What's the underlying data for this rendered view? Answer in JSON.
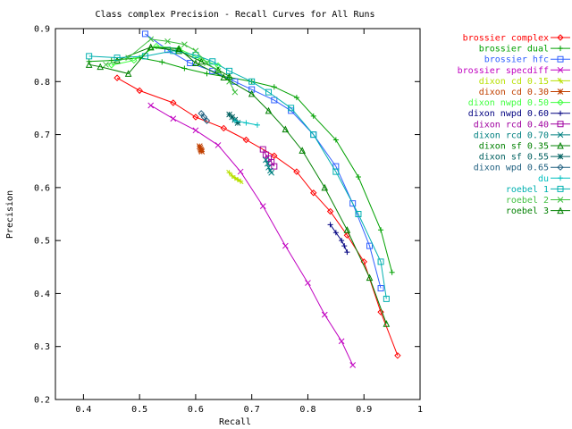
{
  "chart_data": {
    "type": "line",
    "title": "Class complex Precision - Recall Curves for All Runs",
    "xlabel": "Recall",
    "ylabel": "Precision",
    "xlim": [
      0.35,
      1.0
    ],
    "ylim": [
      0.2,
      0.9
    ],
    "xticks": [
      "0.4",
      "0.5",
      "0.6",
      "0.7",
      "0.8",
      "0.9",
      "1"
    ],
    "yticks": [
      "0.2",
      "0.3",
      "0.4",
      "0.5",
      "0.6",
      "0.7",
      "0.8",
      "0.9"
    ],
    "grid": false,
    "legend_position": "right",
    "series": [
      {
        "name": "brossier complex",
        "color": "#ff0000",
        "marker": "diamond",
        "x": [
          0.46,
          0.5,
          0.56,
          0.6,
          0.65,
          0.69,
          0.74,
          0.78,
          0.81,
          0.84,
          0.87,
          0.9,
          0.93,
          0.96
        ],
        "y": [
          0.807,
          0.783,
          0.76,
          0.733,
          0.712,
          0.69,
          0.66,
          0.63,
          0.59,
          0.555,
          0.51,
          0.46,
          0.365,
          0.283
        ]
      },
      {
        "name": "brossier dual",
        "color": "#00a000",
        "marker": "plus",
        "x": [
          0.41,
          0.45,
          0.5,
          0.54,
          0.58,
          0.62,
          0.66,
          0.7,
          0.74,
          0.78,
          0.81,
          0.85,
          0.89,
          0.93,
          0.95
        ],
        "y": [
          0.838,
          0.84,
          0.845,
          0.837,
          0.825,
          0.815,
          0.808,
          0.8,
          0.79,
          0.77,
          0.735,
          0.69,
          0.62,
          0.52,
          0.44
        ]
      },
      {
        "name": "brossier hfc",
        "color": "#3060ff",
        "marker": "square",
        "x": [
          0.51,
          0.55,
          0.59,
          0.63,
          0.67,
          0.7,
          0.74,
          0.77,
          0.81,
          0.85,
          0.88,
          0.91,
          0.93
        ],
        "y": [
          0.89,
          0.86,
          0.835,
          0.82,
          0.8,
          0.785,
          0.765,
          0.745,
          0.7,
          0.64,
          0.57,
          0.49,
          0.41
        ]
      },
      {
        "name": "brossier specdiff",
        "color": "#c000c0",
        "marker": "cross",
        "x": [
          0.52,
          0.56,
          0.6,
          0.64,
          0.68,
          0.72,
          0.76,
          0.8,
          0.83,
          0.86,
          0.88
        ],
        "y": [
          0.755,
          0.73,
          0.708,
          0.68,
          0.63,
          0.565,
          0.49,
          0.42,
          0.36,
          0.31,
          0.265
        ]
      },
      {
        "name": "dixon cd 0.15",
        "color": "#b8e000",
        "marker": "star",
        "x": [
          0.66,
          0.665,
          0.67,
          0.675,
          0.68
        ],
        "y": [
          0.628,
          0.622,
          0.618,
          0.615,
          0.612
        ]
      },
      {
        "name": "dixon cd 0.30",
        "color": "#c04000",
        "marker": "asterisk",
        "x": [
          0.607,
          0.608,
          0.609,
          0.61,
          0.611
        ],
        "y": [
          0.678,
          0.675,
          0.672,
          0.67,
          0.668
        ]
      },
      {
        "name": "dixon nwpd 0.50",
        "color": "#40ff40",
        "marker": "diamond",
        "x": [
          0.45,
          0.49,
          0.53,
          0.57,
          0.61,
          0.64
        ],
        "y": [
          0.831,
          0.84,
          0.867,
          0.862,
          0.842,
          0.83
        ]
      },
      {
        "name": "dixon nwpd 0.60",
        "color": "#000080",
        "marker": "plus",
        "x": [
          0.84,
          0.85,
          0.86,
          0.865,
          0.87
        ],
        "y": [
          0.53,
          0.515,
          0.5,
          0.49,
          0.478
        ]
      },
      {
        "name": "dixon rcd 0.40",
        "color": "#a000a0",
        "marker": "square",
        "x": [
          0.72,
          0.725,
          0.73,
          0.735,
          0.74
        ],
        "y": [
          0.672,
          0.662,
          0.655,
          0.648,
          0.64
        ]
      },
      {
        "name": "dixon rcd 0.70",
        "color": "#008080",
        "marker": "cross",
        "x": [
          0.725,
          0.728,
          0.73,
          0.733,
          0.735
        ],
        "y": [
          0.652,
          0.645,
          0.638,
          0.632,
          0.628
        ]
      },
      {
        "name": "dixon sf 0.35",
        "color": "#008000",
        "marker": "triangle",
        "x": [
          0.46,
          0.52,
          0.57,
          0.61,
          0.64,
          0.66
        ],
        "y": [
          0.84,
          0.865,
          0.858,
          0.838,
          0.822,
          0.81
        ]
      },
      {
        "name": "dixon sf 0.55",
        "color": "#006060",
        "marker": "asterisk",
        "x": [
          0.66,
          0.665,
          0.67,
          0.675
        ],
        "y": [
          0.738,
          0.733,
          0.728,
          0.722
        ]
      },
      {
        "name": "dixon wpd 0.65",
        "color": "#206080",
        "marker": "diamond",
        "x": [
          0.61,
          0.615,
          0.62
        ],
        "y": [
          0.74,
          0.733,
          0.726
        ]
      },
      {
        "name": "du",
        "color": "#00c0c0",
        "marker": "plus",
        "x": [
          0.67,
          0.69,
          0.71
        ],
        "y": [
          0.726,
          0.722,
          0.718
        ]
      },
      {
        "name": "roebel 1",
        "color": "#00b0b0",
        "marker": "square",
        "x": [
          0.41,
          0.46,
          0.51,
          0.56,
          0.6,
          0.63,
          0.66,
          0.7,
          0.73,
          0.77,
          0.81,
          0.85,
          0.89,
          0.93,
          0.94
        ],
        "y": [
          0.848,
          0.845,
          0.848,
          0.858,
          0.85,
          0.838,
          0.82,
          0.8,
          0.78,
          0.75,
          0.7,
          0.63,
          0.55,
          0.46,
          0.39
        ]
      },
      {
        "name": "roebel 2",
        "color": "#40c040",
        "marker": "cross",
        "x": [
          0.44,
          0.48,
          0.52,
          0.55,
          0.58,
          0.6,
          0.62,
          0.64,
          0.66,
          0.67
        ],
        "y": [
          0.832,
          0.845,
          0.88,
          0.876,
          0.87,
          0.858,
          0.835,
          0.82,
          0.8,
          0.78
        ]
      },
      {
        "name": "roebel 3",
        "color": "#008000",
        "marker": "triangle",
        "x": [
          0.41,
          0.43,
          0.48,
          0.52,
          0.57,
          0.6,
          0.65,
          0.7,
          0.73,
          0.76,
          0.79,
          0.83,
          0.87,
          0.91,
          0.94
        ],
        "y": [
          0.832,
          0.828,
          0.815,
          0.865,
          0.862,
          0.835,
          0.808,
          0.777,
          0.745,
          0.71,
          0.67,
          0.6,
          0.52,
          0.43,
          0.343
        ]
      }
    ]
  }
}
